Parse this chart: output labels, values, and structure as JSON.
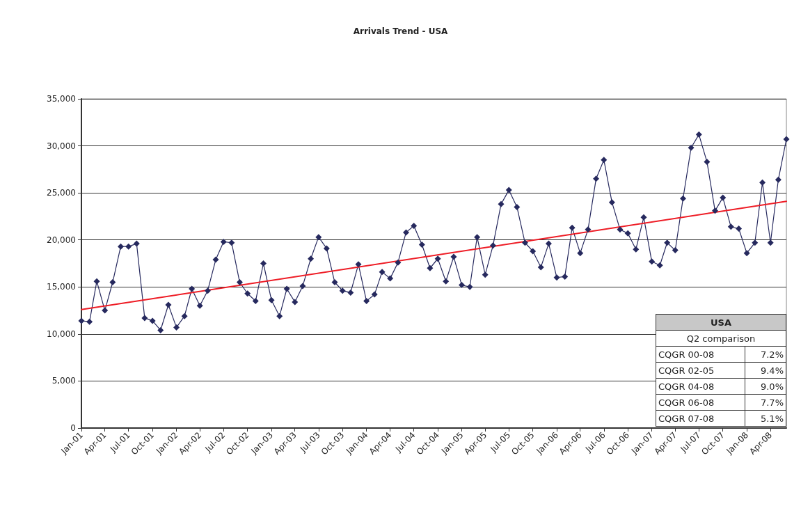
{
  "chart_data": {
    "type": "line",
    "title": "Arrivals Trend - USA",
    "x": [
      "2001-01",
      "2001-02",
      "2001-03",
      "2001-04",
      "2001-05",
      "2001-06",
      "2001-07",
      "2001-08",
      "2001-09",
      "2001-10",
      "2001-11",
      "2001-12",
      "2002-01",
      "2002-02",
      "2002-03",
      "2002-04",
      "2002-05",
      "2002-06",
      "2002-07",
      "2002-08",
      "2002-09",
      "2002-10",
      "2002-11",
      "2002-12",
      "2003-01",
      "2003-02",
      "2003-03",
      "2003-04",
      "2003-05",
      "2003-06",
      "2003-07",
      "2003-08",
      "2003-09",
      "2003-10",
      "2003-11",
      "2003-12",
      "2004-01",
      "2004-02",
      "2004-03",
      "2004-04",
      "2004-05",
      "2004-06",
      "2004-07",
      "2004-08",
      "2004-09",
      "2004-10",
      "2004-11",
      "2004-12",
      "2005-01",
      "2005-02",
      "2005-03",
      "2005-04",
      "2005-05",
      "2005-06",
      "2005-07",
      "2005-08",
      "2005-09",
      "2005-10",
      "2005-11",
      "2005-12",
      "2006-01",
      "2006-02",
      "2006-03",
      "2006-04",
      "2006-05",
      "2006-06",
      "2006-07",
      "2006-08",
      "2006-09",
      "2006-10",
      "2006-11",
      "2006-12",
      "2007-01",
      "2007-02",
      "2007-03",
      "2007-04",
      "2007-05",
      "2007-06",
      "2007-07",
      "2007-08",
      "2007-09",
      "2007-10",
      "2007-11",
      "2007-12",
      "2008-01",
      "2008-02",
      "2008-03",
      "2008-04",
      "2008-05",
      "2008-06"
    ],
    "series": [
      {
        "color": "#26295e",
        "marker": "diamond",
        "values": [
          11400,
          11300,
          15600,
          12500,
          15500,
          19300,
          19300,
          19600,
          11700,
          11400,
          10400,
          13100,
          10700,
          11900,
          14800,
          13000,
          14600,
          17900,
          19800,
          19700,
          15500,
          14300,
          13500,
          17500,
          13600,
          11900,
          14800,
          13400,
          15100,
          18000,
          20300,
          19100,
          15500,
          14600,
          14400,
          17400,
          13500,
          14200,
          16600,
          15900,
          17600,
          20800,
          21500,
          19500,
          17000,
          18000,
          15600,
          18200,
          15200,
          15000,
          20300,
          16300,
          19400,
          23800,
          25300,
          23500,
          19700,
          18800,
          17100,
          19600,
          16000,
          16100,
          21300,
          18600,
          21100,
          26500,
          28500,
          24000,
          21100,
          20700,
          19000,
          22400,
          17700,
          17300,
          19700,
          18900,
          24400,
          29800,
          31200,
          28300,
          23100,
          24500,
          21400,
          21200,
          18600,
          19700,
          26100,
          19700,
          26400,
          30700
        ]
      },
      {
        "color": "#ee1c25",
        "marker": "none",
        "x": [
          "2001-01",
          "2008-06"
        ],
        "values": [
          12600,
          24100
        ]
      }
    ],
    "xlim": [
      "2001-01",
      "2008-06"
    ],
    "xticks": [
      {
        "value": "2001-01",
        "label": "Jan-01"
      },
      {
        "value": "2001-04",
        "label": "Apr-01"
      },
      {
        "value": "2001-07",
        "label": "Jul-01"
      },
      {
        "value": "2001-10",
        "label": "Oct-01"
      },
      {
        "value": "2002-01",
        "label": "Jan-02"
      },
      {
        "value": "2002-04",
        "label": "Apr-02"
      },
      {
        "value": "2002-07",
        "label": "Jul-02"
      },
      {
        "value": "2002-10",
        "label": "Oct-02"
      },
      {
        "value": "2003-01",
        "label": "Jan-03"
      },
      {
        "value": "2003-04",
        "label": "Apr-03"
      },
      {
        "value": "2003-07",
        "label": "Jul-03"
      },
      {
        "value": "2003-10",
        "label": "Oct-03"
      },
      {
        "value": "2004-01",
        "label": "Jan-04"
      },
      {
        "value": "2004-04",
        "label": "Apr-04"
      },
      {
        "value": "2004-07",
        "label": "Jul-04"
      },
      {
        "value": "2004-10",
        "label": "Oct-04"
      },
      {
        "value": "2005-01",
        "label": "Jan-05"
      },
      {
        "value": "2005-04",
        "label": "Apr-05"
      },
      {
        "value": "2005-07",
        "label": "Jul-05"
      },
      {
        "value": "2005-10",
        "label": "Oct-05"
      },
      {
        "value": "2006-01",
        "label": "Jan-06"
      },
      {
        "value": "2006-04",
        "label": "Apr-06"
      },
      {
        "value": "2006-07",
        "label": "Jul-06"
      },
      {
        "value": "2006-10",
        "label": "Oct-06"
      },
      {
        "value": "2007-01",
        "label": "Jan-07"
      },
      {
        "value": "2007-04",
        "label": "Apr-07"
      },
      {
        "value": "2007-07",
        "label": "Jul-07"
      },
      {
        "value": "2007-10",
        "label": "Oct-07"
      },
      {
        "value": "2008-01",
        "label": "Jan-08"
      },
      {
        "value": "2008-04",
        "label": "Apr-08"
      }
    ],
    "ylim": [
      0,
      35000
    ],
    "yticks": [
      {
        "value": 0,
        "label": "0"
      },
      {
        "value": 5000,
        "label": "5,000"
      },
      {
        "value": 10000,
        "label": "10,000"
      },
      {
        "value": 15000,
        "label": "15,000"
      },
      {
        "value": 20000,
        "label": "20,000"
      },
      {
        "value": 25000,
        "label": "25,000"
      },
      {
        "value": 30000,
        "label": "30,000"
      },
      {
        "value": 35000,
        "label": "35,000"
      }
    ],
    "grid": "y",
    "line_style": "solid",
    "annotations": [
      "USA",
      "Q2 comparison",
      "CQGR 00-08",
      "7.2%",
      "CQGR 02-05",
      "9.4%",
      "CQGR 04-08",
      "9.0%",
      "CQGR 06-08",
      "7.7%",
      "CQGR 07-08",
      "5.1%"
    ]
  }
}
